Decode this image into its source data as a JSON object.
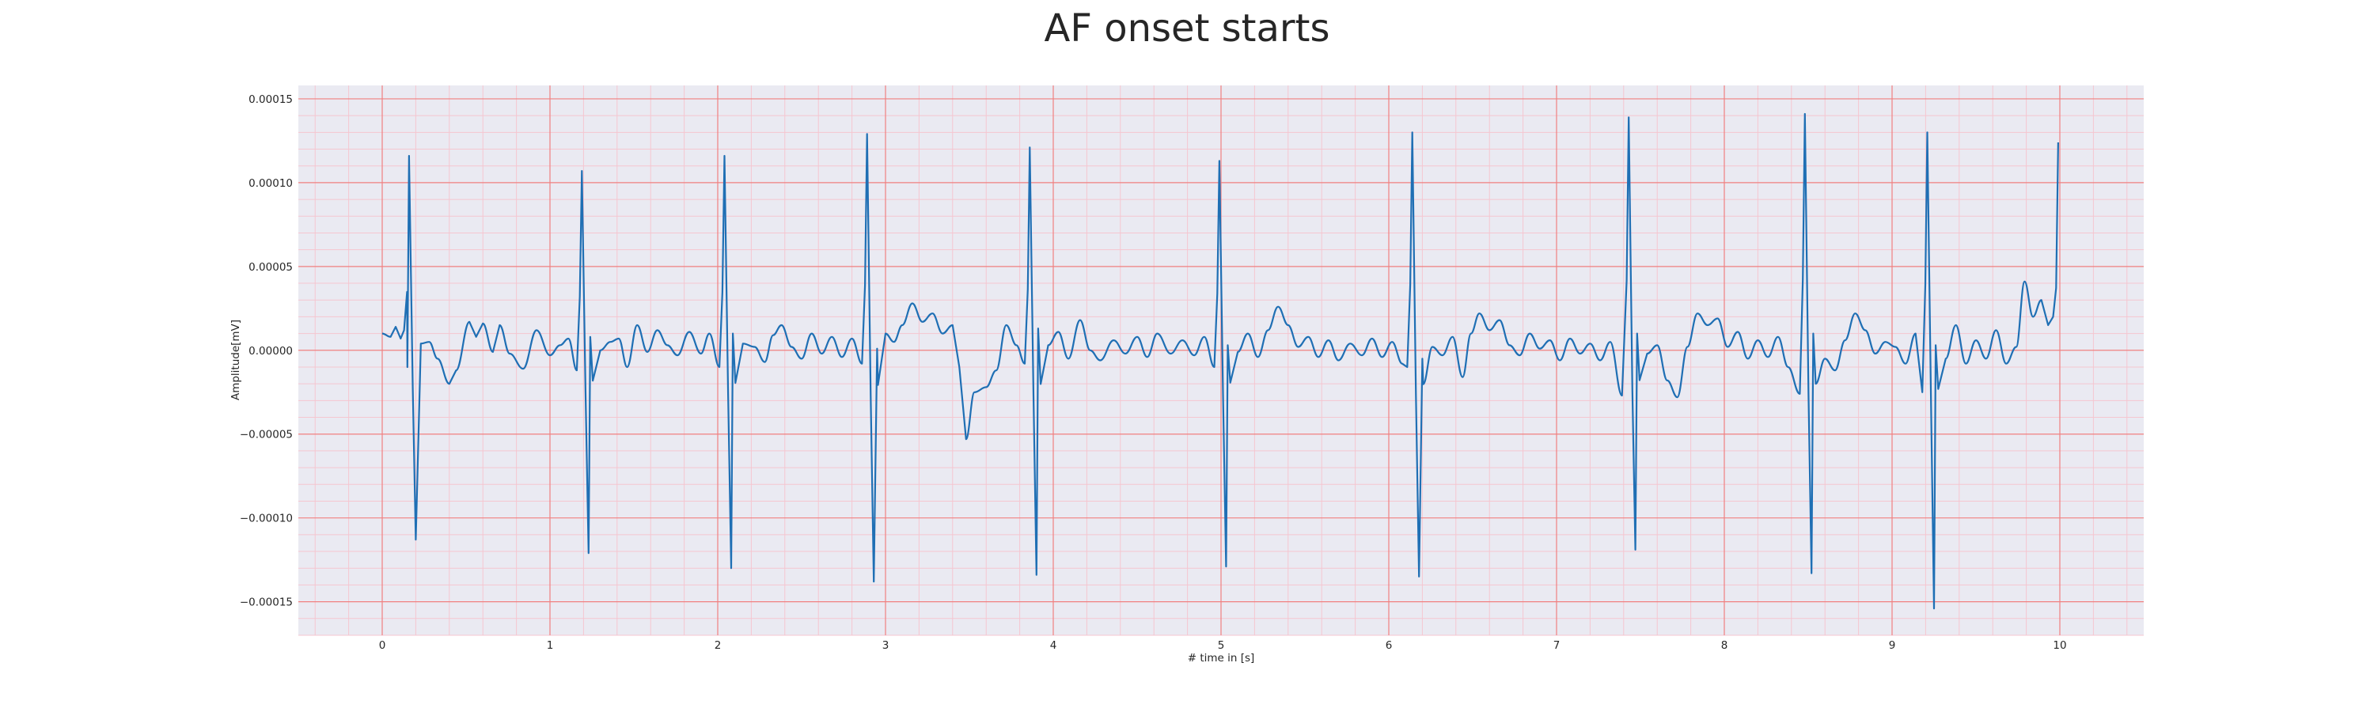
{
  "chart_data": {
    "type": "line",
    "title": "AF onset starts",
    "xlabel": "# time in [s]",
    "ylabel": "Amplitude[mV]",
    "xlim": [
      -0.5,
      10.5
    ],
    "ylim": [
      -0.00017,
      0.000158
    ],
    "xticks": [
      0,
      1,
      2,
      3,
      4,
      5,
      6,
      7,
      8,
      9,
      10
    ],
    "xtick_labels": [
      "0",
      "1",
      "2",
      "3",
      "4",
      "5",
      "6",
      "7",
      "8",
      "9",
      "10"
    ],
    "yticks": [
      -0.00015,
      -0.0001,
      -5e-05,
      0,
      5e-05,
      0.0001,
      0.00015
    ],
    "ytick_labels": [
      "−0.00015",
      "−0.00010",
      "−0.00005",
      "0.00000",
      "0.00005",
      "0.00010",
      "0.00015"
    ],
    "grid": {
      "major": true,
      "minor": true,
      "major_color": "#f08080",
      "minor_color": "#f5c6d0"
    },
    "background_color": "#eaeaf2",
    "line_color": "#1f6fb4",
    "r_peaks": [
      {
        "t": 0.16,
        "peak": 0.000116,
        "trough": -0.000113
      },
      {
        "t": 1.19,
        "peak": 0.000107,
        "trough": -0.000121
      },
      {
        "t": 2.04,
        "peak": 0.000116,
        "trough": -0.00013
      },
      {
        "t": 2.89,
        "peak": 0.000129,
        "trough": -0.000138
      },
      {
        "t": 3.86,
        "peak": 0.000121,
        "trough": -0.000134
      },
      {
        "t": 4.99,
        "peak": 0.000113,
        "trough": -0.000129
      },
      {
        "t": 6.14,
        "peak": 0.00013,
        "trough": -0.000135
      },
      {
        "t": 7.43,
        "peak": 0.000139,
        "trough": -0.000119
      },
      {
        "t": 8.48,
        "peak": 0.000141,
        "trough": -0.000133
      },
      {
        "t": 9.21,
        "peak": 0.00013,
        "trough": -0.000154
      },
      {
        "t": 9.99,
        "peak": 0.000124,
        "trough": -1.6e-05
      }
    ],
    "baseline": [
      {
        "t": 0.0,
        "v": 1e-05
      },
      {
        "t": 0.05,
        "v": 8e-06
      },
      {
        "t": 0.08,
        "v": 1.4e-05
      },
      {
        "t": 0.11,
        "v": 7e-06
      },
      {
        "t": 0.13,
        "v": 1.2e-05
      },
      {
        "t": 0.15,
        "v": -1e-05
      },
      {
        "t": 0.23,
        "v": 4e-06
      },
      {
        "t": 0.28,
        "v": 5e-06
      },
      {
        "t": 0.33,
        "v": -5e-06
      },
      {
        "t": 0.4,
        "v": -2e-05
      },
      {
        "t": 0.44,
        "v": -1.2e-05
      },
      {
        "t": 0.52,
        "v": 1.7e-05
      },
      {
        "t": 0.56,
        "v": 8e-06
      },
      {
        "t": 0.6,
        "v": 1.6e-05
      },
      {
        "t": 0.66,
        "v": -1e-06
      },
      {
        "t": 0.7,
        "v": 1.5e-05
      },
      {
        "t": 0.76,
        "v": -2e-06
      },
      {
        "t": 0.84,
        "v": -1.1e-05
      },
      {
        "t": 0.92,
        "v": 1.2e-05
      },
      {
        "t": 1.0,
        "v": -3e-06
      },
      {
        "t": 1.06,
        "v": 3e-06
      },
      {
        "t": 1.11,
        "v": 7e-06
      },
      {
        "t": 1.16,
        "v": -1.2e-05
      },
      {
        "t": 1.24,
        "v": 8e-06
      },
      {
        "t": 1.3,
        "v": 0.0
      },
      {
        "t": 1.36,
        "v": 5e-06
      },
      {
        "t": 1.41,
        "v": 7e-06
      },
      {
        "t": 1.46,
        "v": -1e-05
      },
      {
        "t": 1.52,
        "v": 1.5e-05
      },
      {
        "t": 1.58,
        "v": -1e-06
      },
      {
        "t": 1.64,
        "v": 1.2e-05
      },
      {
        "t": 1.7,
        "v": 3e-06
      },
      {
        "t": 1.76,
        "v": -3e-06
      },
      {
        "t": 1.83,
        "v": 1.1e-05
      },
      {
        "t": 1.9,
        "v": -2e-06
      },
      {
        "t": 1.95,
        "v": 1e-05
      },
      {
        "t": 2.01,
        "v": -1e-05
      },
      {
        "t": 2.09,
        "v": 1e-05
      },
      {
        "t": 2.15,
        "v": 4e-06
      },
      {
        "t": 2.22,
        "v": 2e-06
      },
      {
        "t": 2.28,
        "v": -7e-06
      },
      {
        "t": 2.33,
        "v": 9e-06
      },
      {
        "t": 2.38,
        "v": 1.5e-05
      },
      {
        "t": 2.44,
        "v": 2e-06
      },
      {
        "t": 2.5,
        "v": -5e-06
      },
      {
        "t": 2.56,
        "v": 1e-05
      },
      {
        "t": 2.62,
        "v": -2e-06
      },
      {
        "t": 2.68,
        "v": 8e-06
      },
      {
        "t": 2.74,
        "v": -4e-06
      },
      {
        "t": 2.8,
        "v": 7e-06
      },
      {
        "t": 2.86,
        "v": -8e-06
      },
      {
        "t": 2.95,
        "v": 1e-06
      },
      {
        "t": 3.0,
        "v": 1e-05
      },
      {
        "t": 3.05,
        "v": 5e-06
      },
      {
        "t": 3.1,
        "v": 1.5e-05
      },
      {
        "t": 3.16,
        "v": 2.8e-05
      },
      {
        "t": 3.22,
        "v": 1.7e-05
      },
      {
        "t": 3.28,
        "v": 2.2e-05
      },
      {
        "t": 3.34,
        "v": 1e-05
      },
      {
        "t": 3.4,
        "v": 1.5e-05
      },
      {
        "t": 3.44,
        "v": -1e-05
      },
      {
        "t": 3.48,
        "v": -5.3e-05
      },
      {
        "t": 3.53,
        "v": -2.5e-05
      },
      {
        "t": 3.6,
        "v": -2.2e-05
      },
      {
        "t": 3.66,
        "v": -1.2e-05
      },
      {
        "t": 3.72,
        "v": 1.5e-05
      },
      {
        "t": 3.78,
        "v": 3e-06
      },
      {
        "t": 3.83,
        "v": -8e-06
      },
      {
        "t": 3.91,
        "v": 1.3e-05
      },
      {
        "t": 3.97,
        "v": 3e-06
      },
      {
        "t": 4.03,
        "v": 1.1e-05
      },
      {
        "t": 4.09,
        "v": -5e-06
      },
      {
        "t": 4.16,
        "v": 1.8e-05
      },
      {
        "t": 4.22,
        "v": 0.0
      },
      {
        "t": 4.28,
        "v": -6e-06
      },
      {
        "t": 4.36,
        "v": 6e-06
      },
      {
        "t": 4.43,
        "v": -2e-06
      },
      {
        "t": 4.5,
        "v": 8e-06
      },
      {
        "t": 4.56,
        "v": -4e-06
      },
      {
        "t": 4.62,
        "v": 1e-05
      },
      {
        "t": 4.7,
        "v": -2e-06
      },
      {
        "t": 4.77,
        "v": 6e-06
      },
      {
        "t": 4.84,
        "v": -3e-06
      },
      {
        "t": 4.9,
        "v": 8e-06
      },
      {
        "t": 4.96,
        "v": -1e-05
      },
      {
        "t": 5.04,
        "v": 3e-06
      },
      {
        "t": 5.1,
        "v": -1e-06
      },
      {
        "t": 5.16,
        "v": 1e-05
      },
      {
        "t": 5.22,
        "v": -4e-06
      },
      {
        "t": 5.28,
        "v": 1.2e-05
      },
      {
        "t": 5.34,
        "v": 2.6e-05
      },
      {
        "t": 5.4,
        "v": 1.5e-05
      },
      {
        "t": 5.46,
        "v": 2e-06
      },
      {
        "t": 5.52,
        "v": 8e-06
      },
      {
        "t": 5.58,
        "v": -4e-06
      },
      {
        "t": 5.64,
        "v": 6e-06
      },
      {
        "t": 5.7,
        "v": -6e-06
      },
      {
        "t": 5.77,
        "v": 4e-06
      },
      {
        "t": 5.84,
        "v": -3e-06
      },
      {
        "t": 5.9,
        "v": 7e-06
      },
      {
        "t": 5.96,
        "v": -4e-06
      },
      {
        "t": 6.02,
        "v": 5e-06
      },
      {
        "t": 6.08,
        "v": -8e-06
      },
      {
        "t": 6.11,
        "v": -1e-05
      },
      {
        "t": 6.2,
        "v": -5e-06
      },
      {
        "t": 6.26,
        "v": 2e-06
      },
      {
        "t": 6.32,
        "v": -3e-06
      },
      {
        "t": 6.38,
        "v": 8e-06
      },
      {
        "t": 6.44,
        "v": -1.6e-05
      },
      {
        "t": 6.49,
        "v": 1e-05
      },
      {
        "t": 6.54,
        "v": 2.2e-05
      },
      {
        "t": 6.6,
        "v": 1.2e-05
      },
      {
        "t": 6.66,
        "v": 1.8e-05
      },
      {
        "t": 6.72,
        "v": 3e-06
      },
      {
        "t": 6.78,
        "v": -3e-06
      },
      {
        "t": 6.84,
        "v": 1e-05
      },
      {
        "t": 6.9,
        "v": 1e-06
      },
      {
        "t": 6.96,
        "v": 6e-06
      },
      {
        "t": 7.02,
        "v": -6e-06
      },
      {
        "t": 7.08,
        "v": 7e-06
      },
      {
        "t": 7.14,
        "v": -2e-06
      },
      {
        "t": 7.2,
        "v": 4e-06
      },
      {
        "t": 7.26,
        "v": -6e-06
      },
      {
        "t": 7.32,
        "v": 5e-06
      },
      {
        "t": 7.39,
        "v": -2.7e-05
      },
      {
        "t": 7.48,
        "v": 1e-05
      },
      {
        "t": 7.54,
        "v": -2e-06
      },
      {
        "t": 7.6,
        "v": 3e-06
      },
      {
        "t": 7.66,
        "v": -1.8e-05
      },
      {
        "t": 7.72,
        "v": -2.8e-05
      },
      {
        "t": 7.78,
        "v": 2e-06
      },
      {
        "t": 7.84,
        "v": 2.2e-05
      },
      {
        "t": 7.9,
        "v": 1.5e-05
      },
      {
        "t": 7.96,
        "v": 1.9e-05
      },
      {
        "t": 8.02,
        "v": 2e-06
      },
      {
        "t": 8.08,
        "v": 1.1e-05
      },
      {
        "t": 8.14,
        "v": -5e-06
      },
      {
        "t": 8.2,
        "v": 6e-06
      },
      {
        "t": 8.26,
        "v": -4e-06
      },
      {
        "t": 8.32,
        "v": 8e-06
      },
      {
        "t": 8.38,
        "v": -1e-05
      },
      {
        "t": 8.45,
        "v": -2.6e-05
      },
      {
        "t": 8.53,
        "v": 1e-05
      },
      {
        "t": 8.6,
        "v": -5e-06
      },
      {
        "t": 8.66,
        "v": -1.2e-05
      },
      {
        "t": 8.72,
        "v": 6e-06
      },
      {
        "t": 8.78,
        "v": 2.2e-05
      },
      {
        "t": 8.84,
        "v": 1.2e-05
      },
      {
        "t": 8.9,
        "v": -2e-06
      },
      {
        "t": 8.96,
        "v": 5e-06
      },
      {
        "t": 9.02,
        "v": 2e-06
      },
      {
        "t": 9.08,
        "v": -8e-06
      },
      {
        "t": 9.14,
        "v": 1e-05
      },
      {
        "t": 9.18,
        "v": -2.5e-05
      },
      {
        "t": 9.26,
        "v": 3e-06
      },
      {
        "t": 9.32,
        "v": -5e-06
      },
      {
        "t": 9.38,
        "v": 1.5e-05
      },
      {
        "t": 9.44,
        "v": -8e-06
      },
      {
        "t": 9.5,
        "v": 6e-06
      },
      {
        "t": 9.56,
        "v": -5e-06
      },
      {
        "t": 9.62,
        "v": 1.2e-05
      },
      {
        "t": 9.68,
        "v": -8e-06
      },
      {
        "t": 9.74,
        "v": 2e-06
      },
      {
        "t": 9.79,
        "v": 4.1e-05
      },
      {
        "t": 9.84,
        "v": 2e-05
      },
      {
        "t": 9.89,
        "v": 3e-05
      },
      {
        "t": 9.93,
        "v": 1.5e-05
      },
      {
        "t": 9.96,
        "v": 2e-05
      }
    ]
  }
}
